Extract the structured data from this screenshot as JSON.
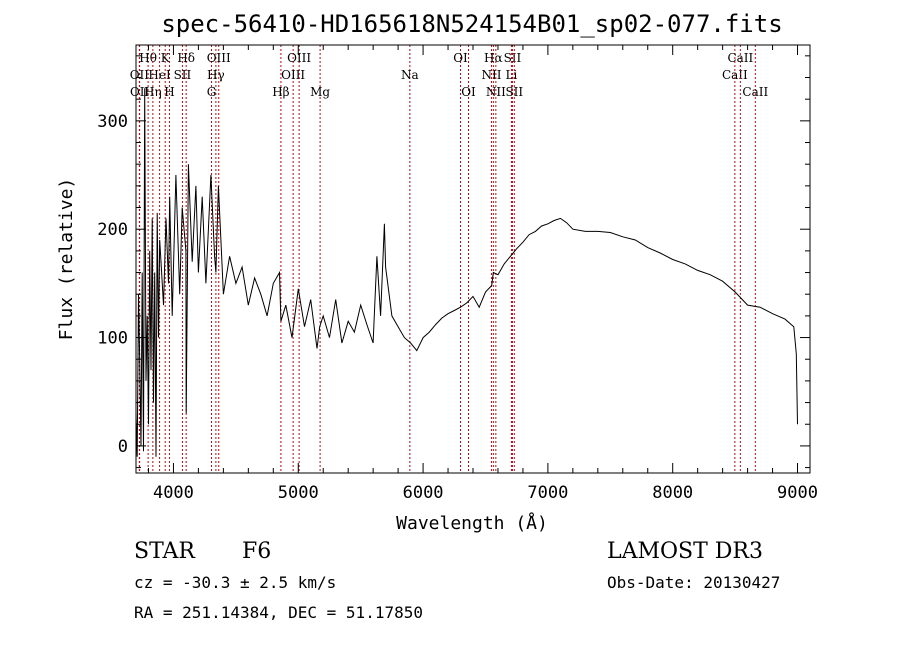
{
  "chart_data": {
    "type": "line",
    "title": "spec-56410-HD165618N524154B01_sp02-077.fits",
    "xlabel": "Wavelength (Å)",
    "ylabel": "Flux (relative)",
    "xlim": [
      3700,
      9100
    ],
    "ylim": [
      -25,
      370
    ],
    "xticks": [
      4000,
      5000,
      6000,
      7000,
      8000,
      9000
    ],
    "xtick_labels": [
      "4000",
      "5000",
      "6000",
      "7000",
      "8000",
      "9000"
    ],
    "yticks": [
      0,
      100,
      200,
      300
    ],
    "ytick_labels": [
      "0",
      "100",
      "200",
      "300"
    ],
    "grid": false,
    "series": [
      {
        "name": "flux",
        "x": [
          3700,
          3710,
          3720,
          3730,
          3740,
          3750,
          3760,
          3770,
          3780,
          3790,
          3800,
          3810,
          3820,
          3830,
          3840,
          3850,
          3860,
          3870,
          3880,
          3890,
          3900,
          3920,
          3940,
          3960,
          3970,
          3990,
          4020,
          4050,
          4070,
          4100,
          4102,
          4120,
          4150,
          4180,
          4200,
          4230,
          4260,
          4300,
          4330,
          4340,
          4360,
          4400,
          4450,
          4500,
          4550,
          4600,
          4650,
          4700,
          4750,
          4800,
          4850,
          4861,
          4900,
          4950,
          5000,
          5050,
          5100,
          5150,
          5172,
          5200,
          5250,
          5300,
          5350,
          5400,
          5450,
          5500,
          5550,
          5600,
          5630,
          5660,
          5690,
          5700,
          5750,
          5800,
          5850,
          5900,
          5950,
          6000,
          6050,
          6100,
          6150,
          6200,
          6250,
          6300,
          6350,
          6400,
          6450,
          6500,
          6550,
          6563,
          6600,
          6650,
          6700,
          6750,
          6800,
          6850,
          6900,
          6950,
          7000,
          7050,
          7100,
          7150,
          7200,
          7300,
          7400,
          7500,
          7600,
          7700,
          7800,
          7900,
          8000,
          8100,
          8200,
          8300,
          8400,
          8500,
          8600,
          8700,
          8800,
          8900,
          8950,
          8970,
          8990,
          9000
        ],
        "y": [
          30,
          -10,
          140,
          80,
          0,
          160,
          -5,
          330,
          60,
          120,
          20,
          180,
          70,
          210,
          40,
          160,
          -10,
          215,
          100,
          190,
          170,
          130,
          210,
          150,
          230,
          120,
          250,
          140,
          220,
          180,
          30,
          260,
          170,
          240,
          160,
          230,
          150,
          250,
          175,
          160,
          240,
          140,
          175,
          150,
          165,
          130,
          155,
          140,
          120,
          150,
          160,
          115,
          130,
          100,
          145,
          110,
          135,
          90,
          110,
          120,
          100,
          135,
          95,
          115,
          105,
          130,
          112,
          95,
          175,
          120,
          205,
          165,
          120,
          110,
          100,
          95,
          88,
          100,
          105,
          112,
          118,
          122,
          125,
          128,
          132,
          138,
          128,
          142,
          148,
          160,
          158,
          168,
          175,
          182,
          188,
          195,
          198,
          203,
          205,
          208,
          210,
          206,
          200,
          198,
          198,
          197,
          193,
          190,
          183,
          178,
          172,
          168,
          162,
          158,
          152,
          142,
          130,
          128,
          122,
          117,
          112,
          110,
          85,
          20
        ]
      }
    ],
    "line_markers": [
      {
        "label": "OII",
        "x": 3727,
        "row": 2
      },
      {
        "label": "OII",
        "x": 3729,
        "row": 3
      },
      {
        "label": "Hθ",
        "x": 3797,
        "row": 1
      },
      {
        "label": "Hη",
        "x": 3835,
        "row": 3
      },
      {
        "label": "HeI",
        "x": 3889,
        "row": 2
      },
      {
        "label": "K",
        "x": 3934,
        "row": 1
      },
      {
        "label": "H",
        "x": 3968,
        "row": 3
      },
      {
        "label": "SII",
        "x": 4072,
        "row": 2
      },
      {
        "label": "Hδ",
        "x": 4102,
        "row": 1
      },
      {
        "label": "G",
        "x": 4305,
        "row": 3
      },
      {
        "label": "Hγ",
        "x": 4340,
        "row": 2
      },
      {
        "label": "OIII",
        "x": 4363,
        "row": 1
      },
      {
        "label": "Hβ",
        "x": 4861,
        "row": 3
      },
      {
        "label": "OIII",
        "x": 4959,
        "row": 2
      },
      {
        "label": "OIII",
        "x": 5007,
        "row": 1
      },
      {
        "label": "Mg",
        "x": 5175,
        "row": 3
      },
      {
        "label": "Na",
        "x": 5894,
        "row": 2
      },
      {
        "label": "OI",
        "x": 6300,
        "row": 1
      },
      {
        "label": "OI",
        "x": 6364,
        "row": 3
      },
      {
        "label": "NII",
        "x": 6548,
        "row": 2
      },
      {
        "label": "Hα",
        "x": 6563,
        "row": 1
      },
      {
        "label": "NII",
        "x": 6583,
        "row": 3
      },
      {
        "label": "Li",
        "x": 6708,
        "row": 2
      },
      {
        "label": "SII",
        "x": 6716,
        "row": 1
      },
      {
        "label": "SII",
        "x": 6731,
        "row": 3
      },
      {
        "label": "CaII",
        "x": 8498,
        "row": 2
      },
      {
        "label": "CaII",
        "x": 8542,
        "row": 1
      },
      {
        "label": "CaII",
        "x": 8662,
        "row": 3
      }
    ],
    "line_color": "#000000",
    "marker_color": "#b01010"
  },
  "info": {
    "object_class": "STAR",
    "subclass": "F6",
    "survey": "LAMOST DR3",
    "redshift": "cz = -30.3 ± 2.5 km/s",
    "obs_date": "Obs-Date: 20130427",
    "coords": "RA = 251.14384, DEC =  51.17850"
  }
}
